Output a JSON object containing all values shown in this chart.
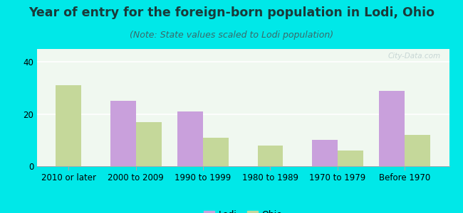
{
  "title": "Year of entry for the foreign-born population in Lodi, Ohio",
  "subtitle": "(Note: State values scaled to Lodi population)",
  "categories": [
    "2010 or later",
    "2000 to 2009",
    "1990 to 1999",
    "1980 to 1989",
    "1970 to 1979",
    "Before 1970"
  ],
  "lodi_values": [
    0,
    25,
    21,
    0,
    10,
    29
  ],
  "ohio_values": [
    31,
    17,
    11,
    8,
    6,
    12
  ],
  "lodi_color": "#c9a0dc",
  "ohio_color": "#c5d89a",
  "background_outer": "#00e8e8",
  "background_chart_top": "#f0f8f0",
  "background_chart_bottom": "#d8efd0",
  "ylim": [
    0,
    45
  ],
  "yticks": [
    0,
    20,
    40
  ],
  "bar_width": 0.38,
  "legend_labels": [
    "Lodi",
    "Ohio"
  ],
  "title_fontsize": 12.5,
  "subtitle_fontsize": 9,
  "axis_fontsize": 8.5,
  "title_color": "#1a3a3a",
  "subtitle_color": "#3a6a6a",
  "watermark": "City-Data.com"
}
